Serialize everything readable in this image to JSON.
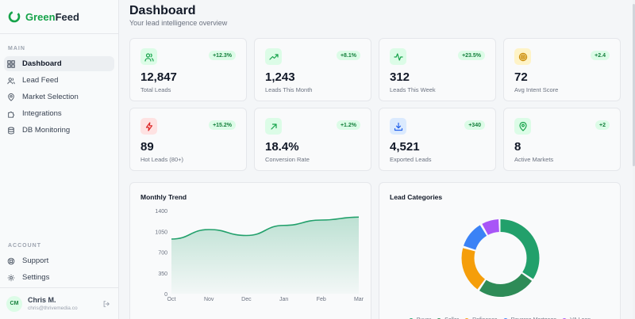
{
  "brand": {
    "name_prefix": "Green",
    "name_suffix": "Feed",
    "accent": "#16a34a"
  },
  "sidebar": {
    "main_label": "MAIN",
    "items": [
      {
        "label": "Dashboard",
        "icon": "grid-icon",
        "active": true
      },
      {
        "label": "Lead Feed",
        "icon": "users-icon"
      },
      {
        "label": "Market Selection",
        "icon": "map-pin-icon"
      },
      {
        "label": "Integrations",
        "icon": "puzzle-icon"
      },
      {
        "label": "DB Monitoring",
        "icon": "database-icon"
      }
    ],
    "account_label": "ACCOUNT",
    "account_items": [
      {
        "label": "Support",
        "icon": "lifebuoy-icon"
      },
      {
        "label": "Settings",
        "icon": "gear-icon"
      }
    ],
    "user": {
      "initials": "CM",
      "name": "Chris M.",
      "email": "chris@thrivemedia.co"
    }
  },
  "header": {
    "title": "Dashboard",
    "subtitle": "Your lead intelligence overview"
  },
  "stats": [
    {
      "value": "12,847",
      "label": "Total Leads",
      "badge": "+12.3%",
      "icon": "users-icon",
      "color": "#16a34a",
      "bg": "#dcfce7"
    },
    {
      "value": "1,243",
      "label": "Leads This Month",
      "badge": "+8.1%",
      "icon": "trending-up-icon",
      "color": "#16a34a",
      "bg": "#dcfce7"
    },
    {
      "value": "312",
      "label": "Leads This Week",
      "badge": "+23.5%",
      "icon": "activity-icon",
      "color": "#16a34a",
      "bg": "#dcfce7"
    },
    {
      "value": "72",
      "label": "Avg Intent Score",
      "badge": "+2.4",
      "icon": "target-icon",
      "color": "#ca8a04",
      "bg": "#fef3c7"
    },
    {
      "value": "89",
      "label": "Hot Leads (80+)",
      "badge": "+15.2%",
      "icon": "zap-icon",
      "color": "#dc2626",
      "bg": "#fee2e2"
    },
    {
      "value": "18.4%",
      "label": "Conversion Rate",
      "badge": "+1.2%",
      "icon": "arrow-up-right-icon",
      "color": "#16a34a",
      "bg": "#dcfce7"
    },
    {
      "value": "4,521",
      "label": "Exported Leads",
      "badge": "+340",
      "icon": "download-icon",
      "color": "#2563eb",
      "bg": "#dbeafe"
    },
    {
      "value": "8",
      "label": "Active Markets",
      "badge": "+2",
      "icon": "map-pin-icon",
      "color": "#16a34a",
      "bg": "#dcfce7"
    }
  ],
  "trend": {
    "title": "Monthly Trend"
  },
  "categories": {
    "title": "Lead Categories"
  },
  "chart_data": [
    {
      "type": "area",
      "title": "Monthly Trend",
      "categories": [
        "Oct",
        "Nov",
        "Dec",
        "Jan",
        "Feb",
        "Mar"
      ],
      "values": [
        920,
        1080,
        980,
        1150,
        1240,
        1290
      ],
      "ylim": [
        0,
        1400
      ],
      "yticks": [
        0,
        350,
        700,
        1050,
        1400
      ],
      "grid": false,
      "color": "#22a06b"
    },
    {
      "type": "pie",
      "title": "Lead Categories",
      "donut": true,
      "labels": [
        "Buyer",
        "Seller",
        "Refinance",
        "Reverse Mortgage",
        "VA Loan"
      ],
      "values": [
        35,
        25,
        20,
        12,
        8
      ],
      "colors": [
        "#22a06b",
        "#2e8b57",
        "#f59e0b",
        "#3b82f6",
        "#a855f7"
      ],
      "legend": "bottom"
    }
  ]
}
